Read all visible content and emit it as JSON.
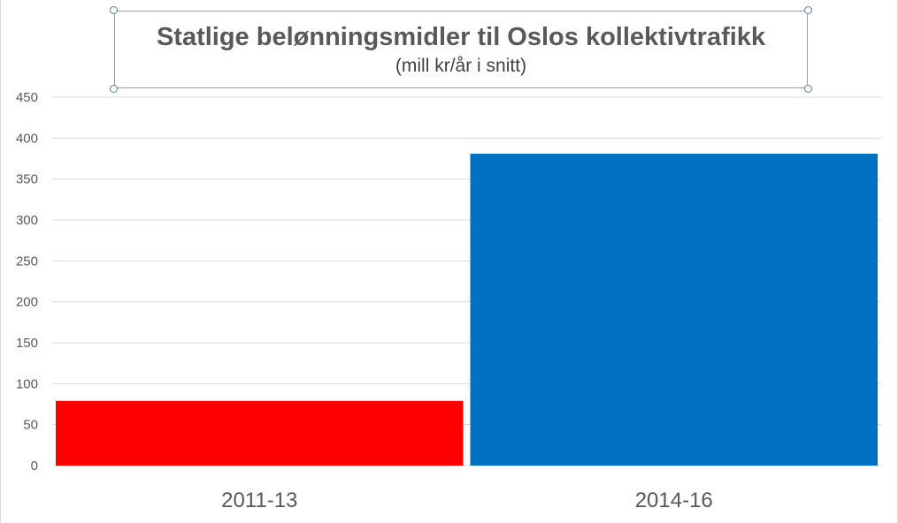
{
  "chart_data": {
    "type": "bar",
    "title": "Statlige belønningsmidler til Oslos kollektivtrafikk",
    "subtitle": "(mill kr/år i snitt)",
    "xlabel": "",
    "ylabel": "",
    "categories": [
      "2011-13",
      "2014-16"
    ],
    "values": [
      79,
      381
    ],
    "bar_colors": [
      "#ff0000",
      "#0070c0"
    ],
    "ylim": [
      0,
      450
    ],
    "yticks": [
      "0",
      "50",
      "100",
      "150",
      "200",
      "250",
      "300",
      "350",
      "400",
      "450"
    ],
    "grid": true,
    "legend": "none"
  },
  "colors": {
    "gridline": "#d9d9d9",
    "tick_text": "#595959",
    "category_text": "#595959"
  }
}
